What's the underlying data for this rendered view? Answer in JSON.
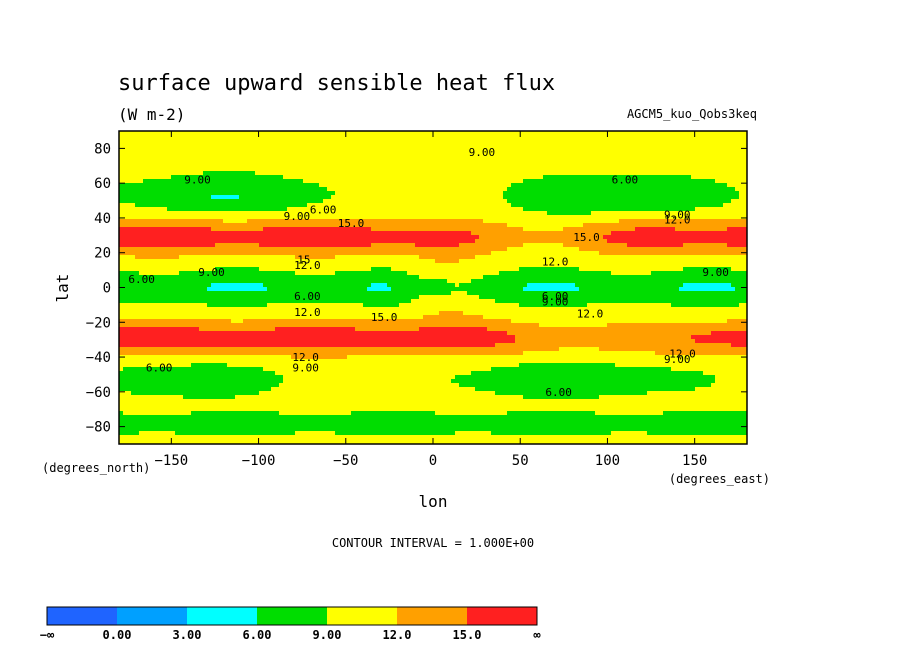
{
  "chart_data": {
    "type": "heatmap",
    "title": "surface upward sensible heat flux",
    "units": "(W m-2)",
    "dataset": "AGCM5_kuo_Qobs3keq",
    "xlabel": "lon",
    "ylabel": "lat",
    "xunits": "(degrees_east)",
    "yunits": "(degrees_north)",
    "xlim": [
      -180,
      180
    ],
    "ylim": [
      -90,
      90
    ],
    "xticks": [
      -150,
      -100,
      -50,
      0,
      50,
      100,
      150
    ],
    "yticks": [
      80,
      60,
      40,
      20,
      0,
      -20,
      -40,
      -60,
      -80
    ],
    "xtick_labels": [
      "−150",
      "−100",
      "−50",
      "0",
      "50",
      "100",
      "150"
    ],
    "ytick_labels": [
      "80",
      "60",
      "40",
      "20",
      "0",
      "−20",
      "−40",
      "−60",
      "−80"
    ],
    "contour_interval_text": "CONTOUR INTERVAL = 1.000E+00",
    "levels": [
      0,
      3,
      6,
      9,
      12,
      15
    ],
    "colorbar": {
      "labels": [
        "−∞",
        "0.00",
        "3.00",
        "6.00",
        "9.00",
        "12.0",
        "15.0",
        "∞"
      ],
      "colors": [
        "#1f64ff",
        "#00a0ff",
        "#00ffff",
        "#00dd00",
        "#ffff00",
        "#ffa000",
        "#ff2020"
      ]
    },
    "contour_labels": [
      {
        "text": "9.00",
        "lon": -135,
        "lat": 62
      },
      {
        "text": "9.00",
        "lon": 28,
        "lat": 78
      },
      {
        "text": "6.00",
        "lon": 110,
        "lat": 62
      },
      {
        "text": "6.00",
        "lon": -63,
        "lat": 45
      },
      {
        "text": "9.00",
        "lon": -78,
        "lat": 41
      },
      {
        "text": "15.0",
        "lon": -47,
        "lat": 37
      },
      {
        "text": "9.00",
        "lon": 140,
        "lat": 42
      },
      {
        "text": "12.0",
        "lon": 140,
        "lat": 39
      },
      {
        "text": "15.0",
        "lon": 88,
        "lat": 29
      },
      {
        "text": "12.0",
        "lon": 70,
        "lat": 15
      },
      {
        "text": "6.00",
        "lon": -167,
        "lat": 5
      },
      {
        "text": "9.00",
        "lon": -127,
        "lat": 9
      },
      {
        "text": "15",
        "lon": -74,
        "lat": 16
      },
      {
        "text": "12.0",
        "lon": -72,
        "lat": 13
      },
      {
        "text": "9.00",
        "lon": 162,
        "lat": 9
      },
      {
        "text": "6.00",
        "lon": -72,
        "lat": -5
      },
      {
        "text": "6.00",
        "lon": 70,
        "lat": -5
      },
      {
        "text": "9.00",
        "lon": 70,
        "lat": -8
      },
      {
        "text": "12.0",
        "lon": -72,
        "lat": -14
      },
      {
        "text": "15.0",
        "lon": -28,
        "lat": -17
      },
      {
        "text": "12.0",
        "lon": 90,
        "lat": -15
      },
      {
        "text": "12.0",
        "lon": -73,
        "lat": -40
      },
      {
        "text": "9.00",
        "lon": -73,
        "lat": -46
      },
      {
        "text": "6.00",
        "lon": -157,
        "lat": -46
      },
      {
        "text": "12.0",
        "lon": 143,
        "lat": -38
      },
      {
        "text": "9.00",
        "lon": 140,
        "lat": -41
      },
      {
        "text": "6.00",
        "lon": 72,
        "lat": -60
      }
    ]
  }
}
